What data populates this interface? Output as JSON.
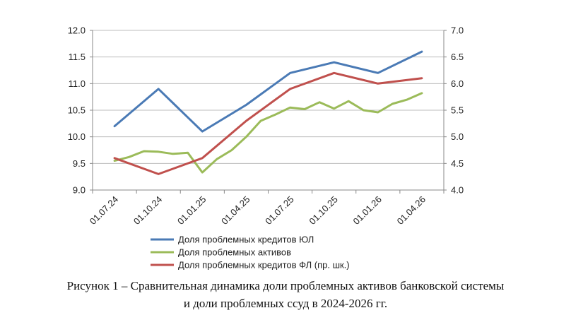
{
  "chart_data": {
    "type": "line",
    "categories": [
      "01.07.24",
      "01.10.24",
      "01.01.25",
      "01.04.25",
      "01.07.25",
      "01.10.25",
      "01.01.26",
      "01.04.26"
    ],
    "y_left": {
      "min": 9.0,
      "max": 12.0,
      "step": 0.5,
      "ticks": [
        "9.0",
        "9.5",
        "10.0",
        "10.5",
        "11.0",
        "11.5",
        "12.0"
      ]
    },
    "y_right": {
      "min": 4.0,
      "max": 7.0,
      "step": 0.5,
      "ticks": [
        "4.0",
        "4.5",
        "5.0",
        "5.5",
        "6.0",
        "6.5",
        "7.0"
      ]
    },
    "grid": true,
    "legend_position": "bottom",
    "series": [
      {
        "name": "Доля проблемных кредитов ЮЛ",
        "color": "#4a7ab5",
        "axis": "left",
        "x": [
          0,
          1,
          2,
          3,
          4,
          5,
          6,
          7
        ],
        "values": [
          10.2,
          10.9,
          10.1,
          10.6,
          11.2,
          11.4,
          11.2,
          11.6
        ]
      },
      {
        "name": "Доля проблемных активов",
        "color": "#9bbb59",
        "axis": "right",
        "x": [
          0,
          0.33,
          0.67,
          1,
          1.33,
          1.67,
          2,
          2.33,
          2.67,
          3,
          3.33,
          3.67,
          4,
          4.33,
          4.67,
          5,
          5.33,
          5.67,
          6,
          6.33,
          6.67,
          7
        ],
        "values": [
          4.55,
          4.62,
          4.73,
          4.72,
          4.68,
          4.7,
          4.33,
          4.58,
          4.75,
          5.0,
          5.3,
          5.42,
          5.55,
          5.52,
          5.65,
          5.53,
          5.67,
          5.5,
          5.46,
          5.62,
          5.7,
          5.82
        ]
      },
      {
        "name": "Доля проблемных кредитов ФЛ (пр. шк.)",
        "color": "#c0504d",
        "axis": "right",
        "x": [
          0,
          1,
          2,
          3,
          4,
          5,
          6,
          7
        ],
        "values": [
          4.6,
          4.3,
          4.6,
          5.3,
          5.9,
          6.2,
          6.0,
          6.1
        ]
      }
    ]
  },
  "caption": {
    "line1": "Рисунок 1 – Сравнительная динамика доли проблемных активов банковской системы",
    "line2": "и доли проблемных ссуд в 2024-2026 гг."
  }
}
